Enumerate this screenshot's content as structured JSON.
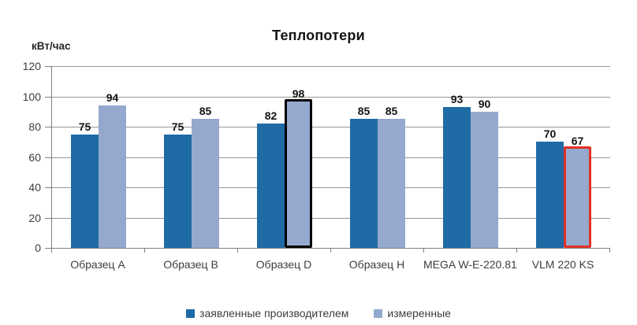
{
  "chart_data": {
    "type": "bar",
    "title": "Теплопотери",
    "ylabel": "кВт/час",
    "ylim": [
      0,
      120
    ],
    "ytick_step": 20,
    "grid": true,
    "legend_position": "bottom",
    "categories": [
      "Образец A",
      "Образец B",
      "Образец D",
      "Образец H",
      "MEGA W-E-220.81",
      "VLM 220 KS"
    ],
    "series": [
      {
        "name": "заявленные производителем",
        "color": "#1F6BA6",
        "values": [
          75,
          75,
          82,
          85,
          93,
          70
        ]
      },
      {
        "name": "измеренные",
        "color": "#95A9CF",
        "values": [
          94,
          85,
          98,
          85,
          90,
          67
        ]
      }
    ],
    "highlights": [
      {
        "category_index": 2,
        "series_index": 1,
        "outline_color": "#000000"
      },
      {
        "category_index": 5,
        "series_index": 1,
        "outline_color": "#E23227"
      }
    ]
  },
  "colors": {
    "gridline": "#969696",
    "axis": "#7F7F7F",
    "tick_text": "#3D3D3D",
    "data_label_text": "#141414",
    "background": "#FFFFFF"
  }
}
